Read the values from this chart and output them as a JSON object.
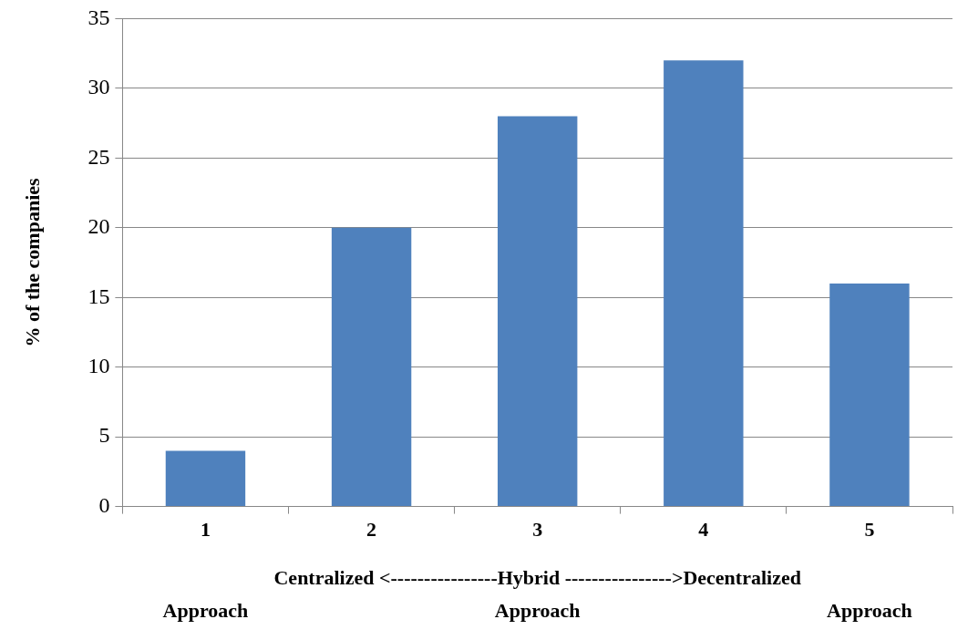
{
  "chart_data": {
    "type": "bar",
    "categories": [
      "1",
      "2",
      "3",
      "4",
      "5"
    ],
    "values": [
      4,
      20,
      28,
      32,
      16
    ],
    "color": "#4f81bd",
    "ylabel": "% of the companies",
    "xlabel": "Centralized <----------------Hybrid ---------------->Decentralized",
    "annotations": [
      "Approach",
      "Approach",
      "Approach"
    ],
    "ylim": [
      0,
      35
    ],
    "yticks": [
      0,
      5,
      10,
      15,
      20,
      25,
      30,
      35
    ],
    "grid": "y",
    "legend": false
  }
}
